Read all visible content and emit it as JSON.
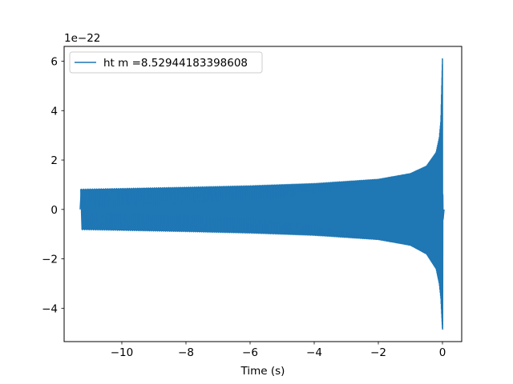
{
  "chart_data": {
    "type": "line",
    "title": "",
    "xlabel": "Time (s)",
    "ylabel": "",
    "y_offset_text": "1e−22",
    "y_scale_factor": 1e-22,
    "xlim": [
      -11.8,
      0.6
    ],
    "ylim": [
      -5.35,
      6.6
    ],
    "x_ticks": [
      -10,
      -8,
      -6,
      -4,
      -2,
      0
    ],
    "x_tick_labels": [
      "−10",
      "−8",
      "−6",
      "−4",
      "−2",
      "0"
    ],
    "y_ticks": [
      -4,
      -2,
      0,
      2,
      4,
      6
    ],
    "y_tick_labels": [
      "−4",
      "−2",
      "0",
      "2",
      "4",
      "6"
    ],
    "grid": false,
    "legend_position": "upper-left",
    "series": [
      {
        "name": "ht m =8.52944183398608",
        "color": "#1f77b4",
        "t_start": -11.3,
        "t_peak": 0.0,
        "t_end": 0.05,
        "amplitude_at_start": 0.82,
        "upper_peak": 6.1,
        "lower_peak": -4.85,
        "envelope_upper": [
          [
            -11.3,
            0.82
          ],
          [
            -10,
            0.85
          ],
          [
            -8,
            0.9
          ],
          [
            -6,
            0.96
          ],
          [
            -4,
            1.05
          ],
          [
            -2,
            1.22
          ],
          [
            -1,
            1.45
          ],
          [
            -0.5,
            1.75
          ],
          [
            -0.2,
            2.3
          ],
          [
            -0.1,
            2.9
          ],
          [
            -0.05,
            3.6
          ],
          [
            0.0,
            6.1
          ]
        ],
        "envelope_lower": [
          [
            -11.3,
            -0.82
          ],
          [
            -10,
            -0.85
          ],
          [
            -8,
            -0.9
          ],
          [
            -6,
            -0.96
          ],
          [
            -4,
            -1.05
          ],
          [
            -2,
            -1.22
          ],
          [
            -1,
            -1.45
          ],
          [
            -0.5,
            -1.8
          ],
          [
            -0.2,
            -2.4
          ],
          [
            -0.1,
            -3.0
          ],
          [
            -0.05,
            -3.6
          ],
          [
            0.0,
            -4.85
          ]
        ]
      }
    ]
  }
}
